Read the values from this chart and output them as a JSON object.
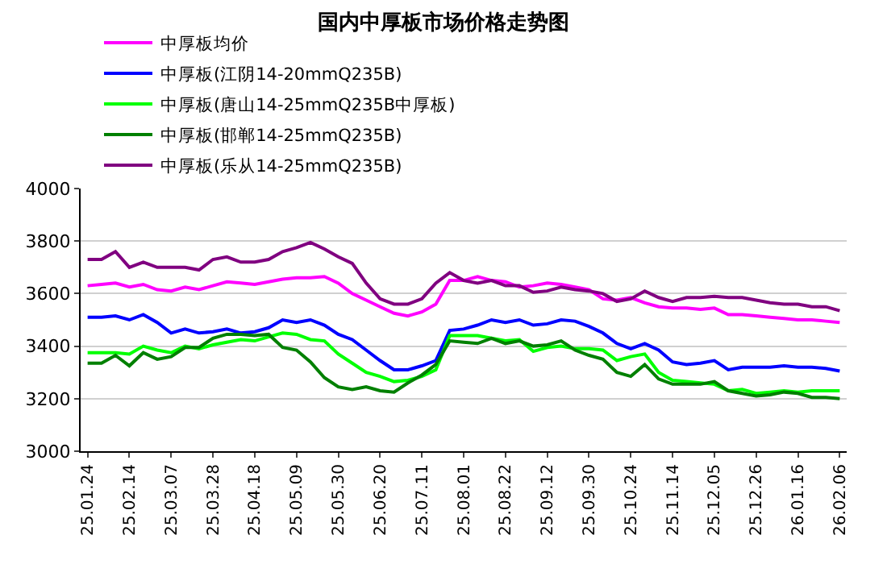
{
  "chart_data": {
    "type": "line",
    "title": "国内中厚板市场价格走势图",
    "categories": [
      "25.01.24",
      null,
      null,
      "25.02.14",
      null,
      null,
      "25.03.07",
      null,
      null,
      "25.03.28",
      null,
      null,
      "25.04.18",
      null,
      null,
      "25.05.09",
      null,
      null,
      "25.05.30",
      null,
      null,
      "25.06.20",
      null,
      null,
      "25.07.11",
      null,
      null,
      "25.08.01",
      null,
      null,
      "25.08.22",
      null,
      null,
      "25.09.12",
      null,
      null,
      "25.09.30",
      null,
      null,
      "25.10.24",
      null,
      null,
      "25.11.14",
      null,
      null,
      "25.12.05",
      null,
      null,
      "25.12.26",
      null,
      null,
      "26.01.16",
      null,
      null,
      "26.02.06"
    ],
    "series": [
      {
        "name": "中厚板均价",
        "color": "#ff00ff",
        "values": [
          3630,
          3635,
          3640,
          3625,
          3635,
          3615,
          3610,
          3625,
          3615,
          3630,
          3645,
          3640,
          3635,
          3645,
          3655,
          3660,
          3660,
          3665,
          3640,
          3600,
          3575,
          3550,
          3525,
          3515,
          3530,
          3560,
          3650,
          3650,
          3665,
          3650,
          3645,
          3625,
          3630,
          3640,
          3635,
          3625,
          3615,
          3580,
          3575,
          3585,
          3565,
          3550,
          3545,
          3545,
          3540,
          3545,
          3520,
          3520,
          3515,
          3510,
          3505,
          3500,
          3500,
          3495,
          3490
        ]
      },
      {
        "name": "中厚板(江阴14-20mmQ235B)",
        "color": "#0000ff",
        "values": [
          3510,
          3510,
          3515,
          3500,
          3520,
          3490,
          3450,
          3465,
          3450,
          3455,
          3465,
          3450,
          3455,
          3470,
          3500,
          3490,
          3500,
          3480,
          3445,
          3425,
          3385,
          3345,
          3310,
          3310,
          3325,
          3345,
          3460,
          3465,
          3480,
          3500,
          3490,
          3500,
          3480,
          3485,
          3500,
          3495,
          3475,
          3450,
          3410,
          3390,
          3410,
          3385,
          3340,
          3330,
          3335,
          3345,
          3310,
          3320,
          3320,
          3320,
          3325,
          3320,
          3320,
          3315,
          3305
        ]
      },
      {
        "name": "中厚板(唐山14-25mmQ235B中厚板)",
        "color": "#00ff00",
        "values": [
          3375,
          3375,
          3375,
          3370,
          3400,
          3385,
          3375,
          3400,
          3390,
          3405,
          3415,
          3425,
          3420,
          3435,
          3450,
          3445,
          3425,
          3420,
          3370,
          3335,
          3300,
          3285,
          3265,
          3270,
          3285,
          3310,
          3440,
          3440,
          3440,
          3430,
          3420,
          3425,
          3380,
          3395,
          3400,
          3390,
          3390,
          3385,
          3345,
          3360,
          3370,
          3300,
          3270,
          3265,
          3260,
          3255,
          3230,
          3235,
          3220,
          3225,
          3230,
          3225,
          3230,
          3230,
          3230
        ]
      },
      {
        "name": "中厚板(邯郸14-25mmQ235B)",
        "color": "#008000",
        "values": [
          3335,
          3335,
          3365,
          3325,
          3375,
          3350,
          3360,
          3395,
          3395,
          3430,
          3445,
          3445,
          3440,
          3445,
          3395,
          3385,
          3340,
          3280,
          3245,
          3235,
          3245,
          3230,
          3225,
          3260,
          3290,
          3330,
          3420,
          3415,
          3410,
          3430,
          3410,
          3420,
          3400,
          3405,
          3420,
          3385,
          3365,
          3350,
          3300,
          3285,
          3330,
          3275,
          3255,
          3255,
          3255,
          3265,
          3230,
          3220,
          3210,
          3215,
          3225,
          3220,
          3205,
          3205,
          3200
        ]
      },
      {
        "name": "中厚板(乐从14-25mmQ235B)",
        "color": "#800080",
        "values": [
          3730,
          3730,
          3760,
          3700,
          3720,
          3700,
          3700,
          3700,
          3690,
          3730,
          3740,
          3720,
          3720,
          3730,
          3760,
          3775,
          3795,
          3770,
          3740,
          3715,
          3640,
          3580,
          3560,
          3560,
          3580,
          3640,
          3680,
          3650,
          3640,
          3650,
          3630,
          3630,
          3605,
          3610,
          3625,
          3615,
          3610,
          3600,
          3570,
          3580,
          3610,
          3585,
          3570,
          3585,
          3585,
          3590,
          3585,
          3585,
          3575,
          3565,
          3560,
          3560,
          3550,
          3550,
          3535
        ]
      }
    ],
    "ylim": [
      3000,
      4000
    ],
    "yticks": [
      3000,
      3200,
      3400,
      3600,
      3800,
      4000
    ],
    "grid": "y",
    "legend": "top",
    "marker": "none",
    "line_style": "solid"
  }
}
